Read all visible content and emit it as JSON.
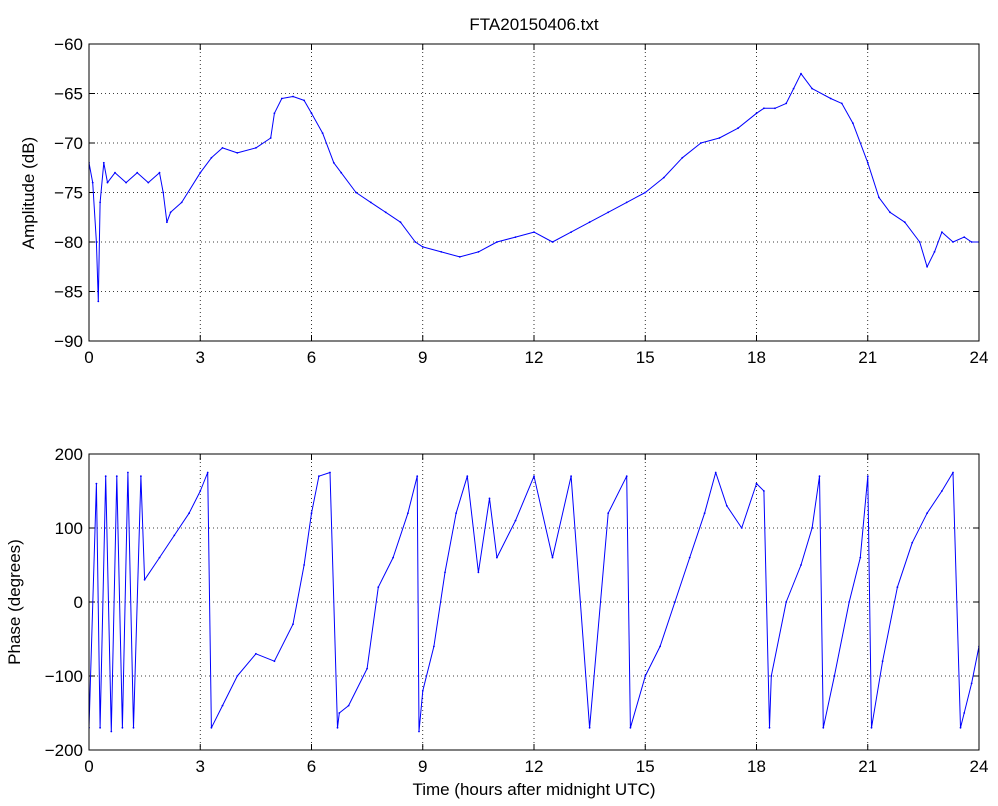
{
  "chart_data": [
    {
      "type": "line",
      "title": "FTA20150406.txt",
      "xlabel": "",
      "ylabel": "Amplitude (dB)",
      "xlim": [
        0,
        24
      ],
      "ylim": [
        -90,
        -60
      ],
      "xticks": [
        "0",
        "3",
        "6",
        "9",
        "12",
        "15",
        "18",
        "21",
        "24"
      ],
      "yticks": [
        "−90",
        "−85",
        "−80",
        "−75",
        "−70",
        "−65",
        "−60"
      ],
      "grid": true,
      "series_color": "#0000ff",
      "series": [
        {
          "x": [
            0,
            0.1,
            0.2,
            0.25,
            0.3,
            0.4,
            0.5,
            0.7,
            1.0,
            1.3,
            1.6,
            1.9,
            2.0,
            2.1,
            2.2,
            2.5,
            3.0,
            3.3,
            3.6,
            4.0,
            4.5,
            4.9,
            5.0,
            5.2,
            5.5,
            5.8,
            6.0,
            6.3,
            6.6,
            6.8,
            7.2,
            7.6,
            8.0,
            8.4,
            8.8,
            9.0,
            9.5,
            10.0,
            10.5,
            11.0,
            11.5,
            12.0,
            12.5,
            13.0,
            13.5,
            14.0,
            14.5,
            15.0,
            15.5,
            16.0,
            16.5,
            17.0,
            17.5,
            18.0,
            18.2,
            18.5,
            18.8,
            19.0,
            19.2,
            19.5,
            20.0,
            20.3,
            20.6,
            21.0,
            21.3,
            21.6,
            22.0,
            22.4,
            22.6,
            22.8,
            23.0,
            23.3,
            23.6,
            23.8,
            24.0
          ],
          "y": [
            -72,
            -74,
            -80,
            -86,
            -76,
            -72,
            -74,
            -73,
            -74,
            -73,
            -74,
            -73,
            -75,
            -78,
            -77,
            -76,
            -73,
            -71.5,
            -70.5,
            -71,
            -70.5,
            -69.5,
            -67,
            -65.5,
            -65.3,
            -65.7,
            -67,
            -69,
            -72,
            -73,
            -75,
            -76,
            -77,
            -78,
            -80,
            -80.5,
            -81,
            -81.5,
            -81,
            -80,
            -79.5,
            -79,
            -80,
            -79,
            -78,
            -77,
            -76,
            -75,
            -73.5,
            -71.5,
            -70,
            -69.5,
            -68.5,
            -67,
            -66.5,
            -66.5,
            -66,
            -64.5,
            -63,
            -64.5,
            -65.5,
            -66,
            -68,
            -72,
            -75.5,
            -77,
            -78,
            -80,
            -82.5,
            -81,
            -79,
            -80,
            -79.5,
            -80,
            -80
          ]
        }
      ]
    },
    {
      "type": "line",
      "title": "",
      "xlabel": "Time (hours after midnight UTC)",
      "ylabel": "Phase (degrees)",
      "xlim": [
        0,
        24
      ],
      "ylim": [
        -200,
        200
      ],
      "xticks": [
        "0",
        "3",
        "6",
        "9",
        "12",
        "15",
        "18",
        "21",
        "24"
      ],
      "yticks": [
        "−200",
        "−100",
        "0",
        "100",
        "200"
      ],
      "grid": true,
      "series_color": "#0000ff",
      "series": [
        {
          "x": [
            0,
            0.2,
            0.3,
            0.45,
            0.6,
            0.75,
            0.9,
            1.05,
            1.2,
            1.4,
            1.5,
            1.9,
            2.3,
            2.7,
            3.0,
            3.2,
            3.3,
            3.6,
            4.0,
            4.5,
            5.0,
            5.5,
            5.8,
            6.0,
            6.2,
            6.5,
            6.7,
            6.75,
            7.0,
            7.5,
            7.8,
            8.2,
            8.6,
            8.85,
            8.9,
            9.0,
            9.3,
            9.6,
            9.9,
            10.2,
            10.5,
            10.8,
            11.0,
            11.5,
            12.0,
            12.5,
            13.0,
            13.5,
            14.0,
            14.5,
            14.6,
            15.0,
            15.4,
            15.8,
            16.2,
            16.6,
            16.9,
            17.2,
            17.6,
            18.0,
            18.2,
            18.35,
            18.4,
            18.8,
            19.2,
            19.5,
            19.7,
            19.8,
            20.1,
            20.5,
            20.8,
            21.0,
            21.1,
            21.4,
            21.8,
            22.2,
            22.6,
            23.0,
            23.3,
            23.5,
            23.6,
            23.8,
            24.0
          ],
          "y": [
            -170,
            160,
            -170,
            170,
            -175,
            170,
            -170,
            175,
            -170,
            170,
            30,
            60,
            90,
            120,
            150,
            175,
            -170,
            -140,
            -100,
            -70,
            -80,
            -30,
            50,
            120,
            170,
            175,
            -170,
            -150,
            -140,
            -90,
            20,
            60,
            120,
            170,
            -175,
            -120,
            -60,
            40,
            120,
            170,
            40,
            140,
            60,
            110,
            170,
            60,
            170,
            -170,
            120,
            170,
            -170,
            -100,
            -60,
            0,
            60,
            120,
            175,
            130,
            100,
            160,
            150,
            -170,
            -100,
            0,
            50,
            100,
            170,
            -170,
            -100,
            0,
            60,
            170,
            -170,
            -80,
            20,
            80,
            120,
            150,
            175,
            -170,
            -150,
            -110,
            -60
          ]
        }
      ]
    }
  ]
}
